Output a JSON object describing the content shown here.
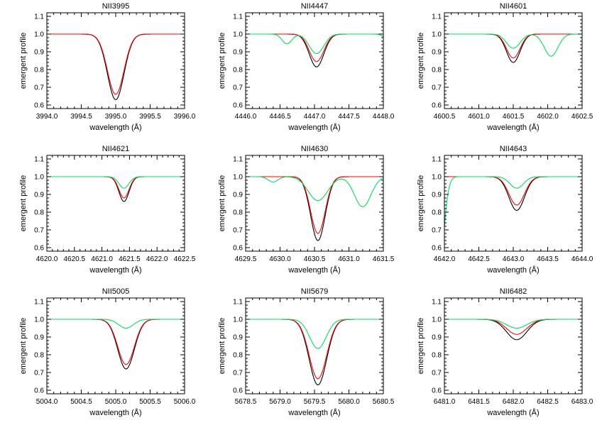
{
  "chart_data": [
    {
      "type": "line",
      "title": "NII3995",
      "xlabel": "wavelength (Å)",
      "ylabel": "emergent profile",
      "xlim": [
        3994.0,
        3996.0
      ],
      "ylim": [
        0.58,
        1.12
      ],
      "xticks": [
        3994.0,
        3994.5,
        3995.0,
        3995.5,
        3996.0
      ],
      "xtick_labels": [
        "3994.0",
        "3994.5",
        "3995.0",
        "3995.5",
        "3996.0"
      ],
      "yticks": [
        0.6,
        0.7,
        0.8,
        0.9,
        1.0,
        1.1
      ],
      "ytick_labels": [
        "0.6",
        "0.7",
        "0.8",
        "0.9",
        "1.0",
        "1.1"
      ],
      "series": [
        {
          "color": "#000000",
          "lines": [
            {
              "center": 3995.0,
              "depth": 0.37,
              "width": 0.17
            }
          ]
        },
        {
          "color": "#ff0000",
          "lines": [
            {
              "center": 3995.0,
              "depth": 0.34,
              "width": 0.17
            }
          ]
        }
      ]
    },
    {
      "type": "line",
      "title": "NII4447",
      "xlabel": "wavelength (Å)",
      "ylabel": "emergent profile",
      "xlim": [
        4446.0,
        4448.0
      ],
      "ylim": [
        0.58,
        1.12
      ],
      "xticks": [
        4446.0,
        4446.5,
        4447.0,
        4447.5,
        4448.0
      ],
      "xtick_labels": [
        "4446.0",
        "4446.5",
        "4447.0",
        "4447.5",
        "4448.0"
      ],
      "yticks": [
        0.6,
        0.7,
        0.8,
        0.9,
        1.0,
        1.1
      ],
      "ytick_labels": [
        "0.6",
        "0.7",
        "0.8",
        "0.9",
        "1.0",
        "1.1"
      ],
      "series": [
        {
          "color": "#000000",
          "lines": [
            {
              "center": 4447.03,
              "depth": 0.185,
              "width": 0.15
            }
          ]
        },
        {
          "color": "#ff0000",
          "lines": [
            {
              "center": 4447.03,
              "depth": 0.155,
              "width": 0.15
            }
          ]
        },
        {
          "color": "#00e060",
          "lines": [
            {
              "center": 4447.03,
              "depth": 0.11,
              "width": 0.15
            },
            {
              "center": 4446.6,
              "depth": 0.055,
              "width": 0.1
            },
            {
              "center": 4448.15,
              "depth": 0.07,
              "width": 0.12
            }
          ]
        }
      ]
    },
    {
      "type": "line",
      "title": "NII4601",
      "xlabel": "wavelength (Å)",
      "ylabel": "emergent profile",
      "xlim": [
        4600.5,
        4602.5
      ],
      "ylim": [
        0.58,
        1.12
      ],
      "xticks": [
        4600.5,
        4601.0,
        4601.5,
        4602.0,
        4602.5
      ],
      "xtick_labels": [
        "4600.5",
        "4601.0",
        "4601.5",
        "4602.0",
        "4602.5"
      ],
      "yticks": [
        0.6,
        0.7,
        0.8,
        0.9,
        1.0,
        1.1
      ],
      "ytick_labels": [
        "0.6",
        "0.7",
        "0.8",
        "0.9",
        "1.0",
        "1.1"
      ],
      "series": [
        {
          "color": "#000000",
          "lines": [
            {
              "center": 4601.5,
              "depth": 0.16,
              "width": 0.14
            }
          ]
        },
        {
          "color": "#ff0000",
          "lines": [
            {
              "center": 4601.5,
              "depth": 0.135,
              "width": 0.14
            }
          ]
        },
        {
          "color": "#00e060",
          "lines": [
            {
              "center": 4601.5,
              "depth": 0.08,
              "width": 0.14
            },
            {
              "center": 4602.05,
              "depth": 0.125,
              "width": 0.14
            }
          ]
        }
      ]
    },
    {
      "type": "line",
      "title": "NII4621",
      "xlabel": "wavelength (Å)",
      "ylabel": "emergent profile",
      "xlim": [
        4620.0,
        4622.5
      ],
      "ylim": [
        0.58,
        1.12
      ],
      "xticks": [
        4620.0,
        4620.5,
        4621.0,
        4621.5,
        4622.0,
        4622.5
      ],
      "xtick_labels": [
        "4620.0",
        "4620.5",
        "4621.0",
        "4621.5",
        "4622.0",
        "4622.5"
      ],
      "yticks": [
        0.6,
        0.7,
        0.8,
        0.9,
        1.0,
        1.1
      ],
      "ytick_labels": [
        "0.6",
        "0.7",
        "0.8",
        "0.9",
        "1.0",
        "1.1"
      ],
      "series": [
        {
          "color": "#000000",
          "lines": [
            {
              "center": 4621.4,
              "depth": 0.14,
              "width": 0.13
            }
          ]
        },
        {
          "color": "#ff0000",
          "lines": [
            {
              "center": 4621.4,
              "depth": 0.12,
              "width": 0.13
            }
          ]
        },
        {
          "color": "#00e060",
          "lines": [
            {
              "center": 4621.4,
              "depth": 0.065,
              "width": 0.13
            }
          ]
        }
      ]
    },
    {
      "type": "line",
      "title": "NII4630",
      "xlabel": "wavelength (Å)",
      "ylabel": "emergent profile",
      "xlim": [
        4629.5,
        4631.5
      ],
      "ylim": [
        0.58,
        1.12
      ],
      "xticks": [
        4629.5,
        4630.0,
        4630.5,
        4631.0,
        4631.5
      ],
      "xtick_labels": [
        "4629.5",
        "4630.0",
        "4630.5",
        "4631.0",
        "4631.5"
      ],
      "yticks": [
        0.6,
        0.7,
        0.8,
        0.9,
        1.0,
        1.1
      ],
      "ytick_labels": [
        "0.6",
        "0.7",
        "0.8",
        "0.9",
        "1.0",
        "1.1"
      ],
      "series": [
        {
          "color": "#000000",
          "lines": [
            {
              "center": 4630.55,
              "depth": 0.36,
              "width": 0.15
            }
          ]
        },
        {
          "color": "#ff0000",
          "lines": [
            {
              "center": 4630.55,
              "depth": 0.32,
              "width": 0.15
            }
          ]
        },
        {
          "color": "#00e060",
          "lines": [
            {
              "center": 4630.55,
              "depth": 0.135,
              "width": 0.2
            },
            {
              "center": 4629.9,
              "depth": 0.03,
              "width": 0.1
            },
            {
              "center": 4631.2,
              "depth": 0.17,
              "width": 0.17
            }
          ]
        }
      ]
    },
    {
      "type": "line",
      "title": "NII4643",
      "xlabel": "wavelength (Å)",
      "ylabel": "emergent profile",
      "xlim": [
        4642.0,
        4644.0
      ],
      "ylim": [
        0.58,
        1.12
      ],
      "xticks": [
        4642.0,
        4642.5,
        4643.0,
        4643.5,
        4644.0
      ],
      "xtick_labels": [
        "4642.0",
        "4642.5",
        "4643.0",
        "4643.5",
        "4644.0"
      ],
      "yticks": [
        0.6,
        0.7,
        0.8,
        0.9,
        1.0,
        1.1
      ],
      "ytick_labels": [
        "0.6",
        "0.7",
        "0.8",
        "0.9",
        "1.0",
        "1.1"
      ],
      "series": [
        {
          "color": "#000000",
          "lines": [
            {
              "center": 4643.05,
              "depth": 0.19,
              "width": 0.16
            }
          ]
        },
        {
          "color": "#ff0000",
          "lines": [
            {
              "center": 4643.05,
              "depth": 0.16,
              "width": 0.16
            }
          ]
        },
        {
          "color": "#00e060",
          "lines": [
            {
              "center": 4643.05,
              "depth": 0.065,
              "width": 0.14
            },
            {
              "center": 4641.9,
              "depth": 0.65,
              "width": 0.11
            }
          ]
        }
      ]
    },
    {
      "type": "line",
      "title": "NII5005",
      "xlabel": "wavelength (Å)",
      "ylabel": "emergent profile",
      "xlim": [
        5004.0,
        5006.0
      ],
      "ylim": [
        0.58,
        1.12
      ],
      "xticks": [
        5004.0,
        5004.5,
        5005.0,
        5005.5,
        5006.0
      ],
      "xtick_labels": [
        "5004.0",
        "5004.5",
        "5005.0",
        "5005.5",
        "5006.0"
      ],
      "yticks": [
        0.6,
        0.7,
        0.8,
        0.9,
        1.0,
        1.1
      ],
      "ytick_labels": [
        "0.6",
        "0.7",
        "0.8",
        "0.9",
        "1.0",
        "1.1"
      ],
      "series": [
        {
          "color": "#000000",
          "lines": [
            {
              "center": 5005.15,
              "depth": 0.28,
              "width": 0.17
            }
          ]
        },
        {
          "color": "#ff0000",
          "lines": [
            {
              "center": 5005.15,
              "depth": 0.255,
              "width": 0.17
            }
          ]
        },
        {
          "color": "#00e060",
          "lines": [
            {
              "center": 5005.15,
              "depth": 0.05,
              "width": 0.15
            }
          ]
        }
      ]
    },
    {
      "type": "line",
      "title": "NII5679",
      "xlabel": "wavelength (Å)",
      "ylabel": "emergent profile",
      "xlim": [
        5678.5,
        5680.5
      ],
      "ylim": [
        0.58,
        1.12
      ],
      "xticks": [
        5678.5,
        5679.0,
        5679.5,
        5680.0,
        5680.5
      ],
      "xtick_labels": [
        "5678.5",
        "5679.0",
        "5679.5",
        "5680.0",
        "5680.5"
      ],
      "yticks": [
        0.6,
        0.7,
        0.8,
        0.9,
        1.0,
        1.1
      ],
      "ytick_labels": [
        "0.6",
        "0.7",
        "0.8",
        "0.9",
        "1.0",
        "1.1"
      ],
      "series": [
        {
          "color": "#000000",
          "lines": [
            {
              "center": 5679.55,
              "depth": 0.37,
              "width": 0.18
            }
          ]
        },
        {
          "color": "#ff0000",
          "lines": [
            {
              "center": 5679.55,
              "depth": 0.335,
              "width": 0.18
            }
          ]
        },
        {
          "color": "#00e060",
          "lines": [
            {
              "center": 5679.55,
              "depth": 0.165,
              "width": 0.17
            }
          ]
        }
      ]
    },
    {
      "type": "line",
      "title": "NII6482",
      "xlabel": "wavelength (Å)",
      "ylabel": "emergent profile",
      "xlim": [
        6481.0,
        6483.0
      ],
      "ylim": [
        0.58,
        1.12
      ],
      "xticks": [
        6481.0,
        6481.5,
        6482.0,
        6482.5,
        6483.0
      ],
      "xtick_labels": [
        "6481.0",
        "6481.5",
        "6482.0",
        "6482.5",
        "6483.0"
      ],
      "yticks": [
        0.6,
        0.7,
        0.8,
        0.9,
        1.0,
        1.1
      ],
      "ytick_labels": [
        "0.6",
        "0.7",
        "0.8",
        "0.9",
        "1.0",
        "1.1"
      ],
      "series": [
        {
          "color": "#000000",
          "lines": [
            {
              "center": 6482.05,
              "depth": 0.115,
              "width": 0.21
            }
          ]
        },
        {
          "color": "#ff0000",
          "lines": [
            {
              "center": 6482.05,
              "depth": 0.085,
              "width": 0.21
            }
          ]
        },
        {
          "color": "#00e060",
          "lines": [
            {
              "center": 6482.05,
              "depth": 0.05,
              "width": 0.21
            }
          ]
        }
      ]
    }
  ]
}
